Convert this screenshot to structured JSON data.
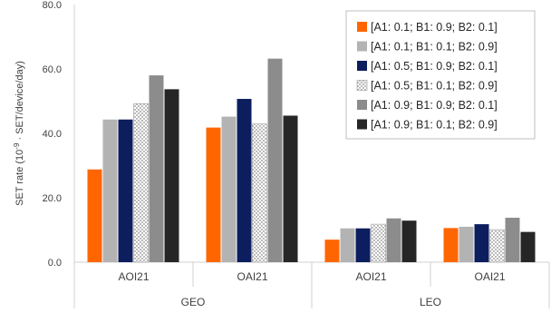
{
  "chart_data": {
    "type": "bar",
    "ylabel_prefix": "SET rate (10",
    "ylabel_exponent": "-9",
    "ylabel_suffix": " · SET/device/day)",
    "ylim": [
      0,
      80
    ],
    "yticks": [
      "0.0",
      "20.0",
      "40.0",
      "60.0",
      "80.0"
    ],
    "ytick_values": [
      0,
      20,
      40,
      60,
      80
    ],
    "grid": false,
    "legend_position": "top-right",
    "groups": [
      {
        "label": "GEO",
        "categories": [
          "AOI21",
          "OAI21"
        ]
      },
      {
        "label": "LEO",
        "categories": [
          "AOI21",
          "OAI21"
        ]
      }
    ],
    "categories": [
      "AOI21",
      "OAI21",
      "AOI21",
      "OAI21"
    ],
    "series": [
      {
        "name": "[A1: 0.1; B1: 0.9; B2: 0.1]",
        "color": "#ff6600",
        "pattern": "solid",
        "values": [
          28.8,
          41.8,
          7.0,
          10.6
        ]
      },
      {
        "name": "[A1: 0.1; B1: 0.1; B2: 0.9]",
        "color": "#b3b3b3",
        "pattern": "solid",
        "values": [
          44.3,
          45.2,
          10.5,
          11.0
        ]
      },
      {
        "name": "[A1: 0.5; B1: 0.9; B2: 0.1]",
        "color": "#0c1e5e",
        "pattern": "solid",
        "values": [
          44.3,
          50.7,
          10.5,
          11.8
        ]
      },
      {
        "name": "[A1: 0.5; B1: 0.1; B2: 0.9]",
        "color": "#ffffff",
        "pattern": "dots",
        "values": [
          49.2,
          42.9,
          11.8,
          10.1
        ]
      },
      {
        "name": "[A1: 0.9; B1: 0.9; B2: 0.1]",
        "color": "#8c8c8c",
        "pattern": "solid",
        "values": [
          58.0,
          63.2,
          13.6,
          13.8
        ]
      },
      {
        "name": "[A1: 0.9; B1: 0.1; B2: 0.9]",
        "color": "#262626",
        "pattern": "solid",
        "values": [
          53.7,
          45.5,
          12.9,
          9.4
        ]
      }
    ]
  }
}
